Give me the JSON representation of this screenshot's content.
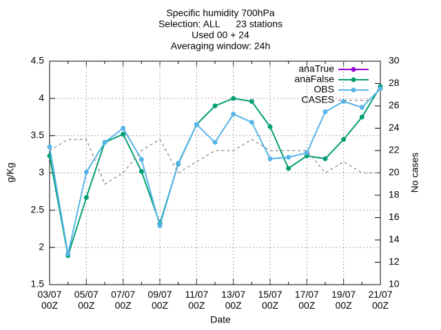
{
  "chart_data": {
    "type": "line",
    "title": [
      "Specific humidity 700hPa",
      "Selection: ALL      23 stations",
      "Used 00 + 24",
      "Averaging window: 24h"
    ],
    "xlabel": "Date",
    "ylabel": "g/Kg",
    "y2label": "No cases",
    "categories": [
      "03/07\n00Z",
      null,
      "05/07\n00Z",
      null,
      "07/07\n00Z",
      null,
      "09/07\n00Z",
      null,
      "11/07\n00Z",
      null,
      "13/07\n00Z",
      null,
      "15/07\n00Z",
      null,
      "17/07\n00Z",
      null,
      "19/07\n00Z",
      null,
      "21/07\n00Z"
    ],
    "ylim": [
      1.5,
      4.5
    ],
    "yticks": [
      1.5,
      2,
      2.5,
      3,
      3.5,
      4,
      4.5
    ],
    "y2lim": [
      10,
      30
    ],
    "y2ticks": [
      10,
      12,
      14,
      16,
      18,
      20,
      22,
      24,
      26,
      28,
      30
    ],
    "grid": true,
    "legend": "top-right",
    "series": [
      {
        "name": "anaTrue",
        "color": "#9400d3",
        "marker": true,
        "values": [
          null,
          null,
          null,
          null,
          null,
          null,
          null,
          null,
          null,
          null,
          null,
          null,
          null,
          null,
          null,
          null,
          null,
          null,
          null
        ]
      },
      {
        "name": "anaFalse",
        "color": "#009e73",
        "marker": true,
        "values": [
          3.23,
          1.89,
          2.67,
          3.41,
          3.52,
          3.02,
          2.32,
          3.12,
          3.65,
          3.9,
          4.0,
          3.96,
          3.62,
          3.06,
          3.23,
          3.19,
          3.45,
          3.75,
          4.16
        ]
      },
      {
        "name": "OBS",
        "color": "#56b4e9",
        "marker": true,
        "values": [
          3.35,
          1.91,
          3.01,
          3.41,
          3.6,
          3.18,
          2.29,
          3.13,
          3.65,
          3.41,
          3.79,
          3.68,
          3.19,
          3.21,
          3.27,
          3.82,
          3.96,
          3.88,
          4.13
        ]
      },
      {
        "name": "CASES",
        "color": "#999999",
        "dashed": true,
        "axis": "y2",
        "values": [
          22,
          23,
          23,
          19,
          20,
          22,
          23,
          20,
          21,
          22,
          22,
          23,
          22,
          22,
          22,
          20,
          21,
          20,
          20
        ]
      }
    ]
  }
}
